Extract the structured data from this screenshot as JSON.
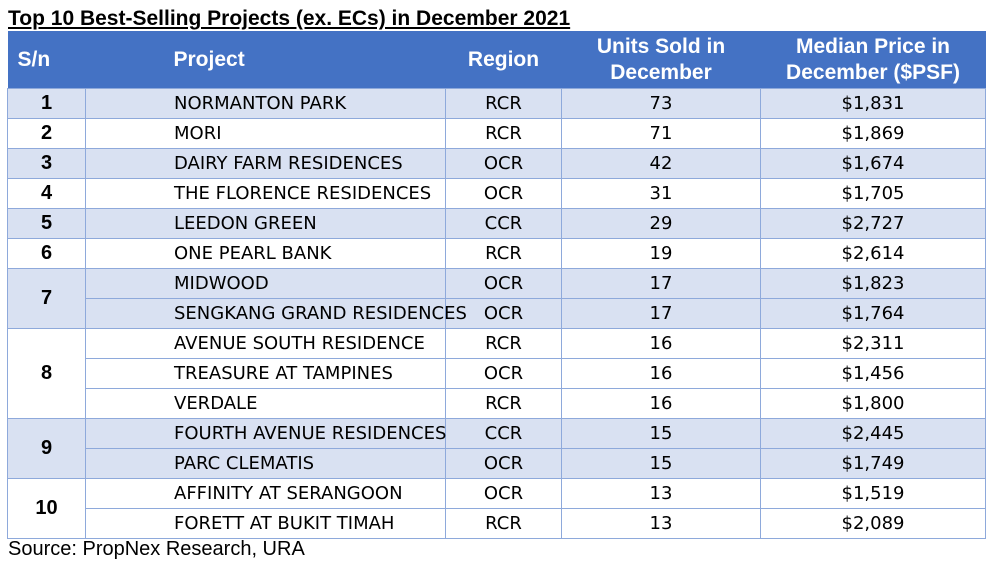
{
  "title": "Top 10 Best-Selling Projects (ex. ECs) in December 2021",
  "headers": {
    "sn": "S/n",
    "project": "Project",
    "region": "Region",
    "units": "Units Sold in December",
    "price": "Median Price in December ($PSF)"
  },
  "groups": [
    {
      "rank": "1",
      "rows": [
        {
          "project": "NORMANTON PARK",
          "region": "RCR",
          "units": "73",
          "price": "$1,831"
        }
      ]
    },
    {
      "rank": "2",
      "rows": [
        {
          "project": "MORI",
          "region": "RCR",
          "units": "71",
          "price": "$1,869"
        }
      ]
    },
    {
      "rank": "3",
      "rows": [
        {
          "project": "DAIRY FARM RESIDENCES",
          "region": "OCR",
          "units": "42",
          "price": "$1,674"
        }
      ]
    },
    {
      "rank": "4",
      "rows": [
        {
          "project": "THE FLORENCE RESIDENCES",
          "region": "OCR",
          "units": "31",
          "price": "$1,705"
        }
      ]
    },
    {
      "rank": "5",
      "rows": [
        {
          "project": "LEEDON GREEN",
          "region": "CCR",
          "units": "29",
          "price": "$2,727"
        }
      ]
    },
    {
      "rank": "6",
      "rows": [
        {
          "project": "ONE PEARL BANK",
          "region": "RCR",
          "units": "19",
          "price": "$2,614"
        }
      ]
    },
    {
      "rank": "7",
      "rows": [
        {
          "project": "MIDWOOD",
          "region": "OCR",
          "units": "17",
          "price": "$1,823"
        },
        {
          "project": "SENGKANG GRAND RESIDENCES",
          "region": "OCR",
          "units": "17",
          "price": "$1,764"
        }
      ]
    },
    {
      "rank": "8",
      "rows": [
        {
          "project": "AVENUE SOUTH RESIDENCE",
          "region": "RCR",
          "units": "16",
          "price": "$2,311"
        },
        {
          "project": "TREASURE AT TAMPINES",
          "region": "OCR",
          "units": "16",
          "price": "$1,456"
        },
        {
          "project": "VERDALE",
          "region": "RCR",
          "units": "16",
          "price": "$1,800"
        }
      ]
    },
    {
      "rank": "9",
      "rows": [
        {
          "project": "FOURTH AVENUE RESIDENCES",
          "region": "CCR",
          "units": "15",
          "price": "$2,445"
        },
        {
          "project": "PARC CLEMATIS",
          "region": "OCR",
          "units": "15",
          "price": "$1,749"
        }
      ]
    },
    {
      "rank": "10",
      "rows": [
        {
          "project": "AFFINITY AT SERANGOON",
          "region": "OCR",
          "units": "13",
          "price": "$1,519"
        },
        {
          "project": "FORETT AT BUKIT TIMAH",
          "region": "RCR",
          "units": "13",
          "price": "$2,089"
        }
      ]
    }
  ],
  "source": "Source: PropNex Research, URA",
  "colors": {
    "header_bg": "#4472c4",
    "header_text": "#ffffff",
    "band_a": "#d9e1f2",
    "band_b": "#ffffff",
    "border": "#8ea9db"
  }
}
